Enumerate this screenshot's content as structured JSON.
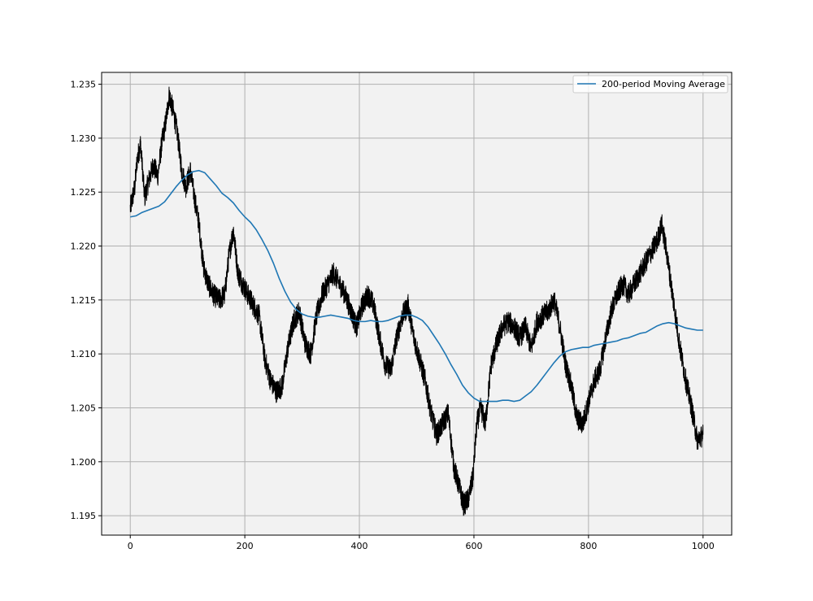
{
  "chart_data": {
    "type": "line",
    "title": "",
    "xlabel": "",
    "ylabel": "",
    "xlim": [
      -50,
      1050
    ],
    "ylim": [
      1.1932,
      1.2361
    ],
    "xticks": [
      0,
      200,
      400,
      600,
      800,
      1000
    ],
    "yticks": [
      1.195,
      1.2,
      1.205,
      1.21,
      1.215,
      1.22,
      1.225,
      1.23,
      1.235
    ],
    "xtick_labels": [
      "0",
      "200",
      "400",
      "600",
      "800",
      "1000"
    ],
    "ytick_labels": [
      "1.195",
      "1.200",
      "1.205",
      "1.210",
      "1.215",
      "1.220",
      "1.225",
      "1.230",
      "1.235"
    ],
    "grid": true,
    "background_color": "#f2f2f2",
    "legend": {
      "position": "top-right",
      "entries": [
        "200-period Moving Average"
      ]
    },
    "series": [
      {
        "role": "price",
        "color": "#000000",
        "volatility": 0.0013,
        "x": [
          0,
          8,
          12,
          18,
          25,
          32,
          40,
          48,
          55,
          62,
          68,
          75,
          82,
          90,
          97,
          105,
          112,
          120,
          128,
          136,
          145,
          155,
          165,
          172,
          180,
          188,
          196,
          205,
          215,
          225,
          235,
          245,
          255,
          265,
          275,
          285,
          295,
          305,
          315,
          325,
          335,
          345,
          355,
          365,
          375,
          385,
          395,
          405,
          415,
          425,
          435,
          445,
          455,
          465,
          475,
          485,
          495,
          505,
          515,
          525,
          535,
          545,
          555,
          565,
          575,
          582,
          590,
          598,
          605,
          612,
          620,
          630,
          640,
          650,
          660,
          670,
          680,
          690,
          700,
          710,
          720,
          730,
          740,
          750,
          760,
          770,
          780,
          790,
          800,
          810,
          820,
          830,
          840,
          850,
          860,
          870,
          880,
          890,
          900,
          910,
          920,
          928,
          936,
          944,
          952,
          960,
          970,
          980,
          990,
          1000
        ],
        "y": [
          1.2235,
          1.2255,
          1.228,
          1.2295,
          1.2245,
          1.226,
          1.2275,
          1.2265,
          1.2295,
          1.2315,
          1.234,
          1.2325,
          1.2305,
          1.227,
          1.2255,
          1.227,
          1.2245,
          1.222,
          1.218,
          1.2165,
          1.2155,
          1.215,
          1.2155,
          1.219,
          1.2215,
          1.2175,
          1.2165,
          1.2155,
          1.2145,
          1.2135,
          1.2095,
          1.2075,
          1.2065,
          1.207,
          1.2105,
          1.213,
          1.214,
          1.211,
          1.21,
          1.2135,
          1.2155,
          1.2165,
          1.2175,
          1.2165,
          1.2155,
          1.214,
          1.2125,
          1.2145,
          1.2155,
          1.2145,
          1.2115,
          1.209,
          1.2085,
          1.2115,
          1.2135,
          1.2145,
          1.2115,
          1.2095,
          1.2075,
          1.2045,
          1.2025,
          1.2035,
          1.2045,
          1.1995,
          1.1975,
          1.196,
          1.1965,
          1.1985,
          1.2035,
          1.205,
          1.2035,
          1.209,
          1.211,
          1.2125,
          1.213,
          1.2125,
          1.2115,
          1.2125,
          1.2105,
          1.213,
          1.2135,
          1.214,
          1.215,
          1.2125,
          1.209,
          1.207,
          1.204,
          1.2035,
          1.2055,
          1.2075,
          1.2085,
          1.2115,
          1.214,
          1.2155,
          1.2165,
          1.2155,
          1.2165,
          1.2175,
          1.2185,
          1.2195,
          1.2205,
          1.222,
          1.2195,
          1.2165,
          1.2135,
          1.2105,
          1.2075,
          1.205,
          1.202,
          1.2025
        ]
      },
      {
        "name": "200-period Moving Average",
        "role": "moving_average",
        "color": "#1f77b4",
        "x": [
          0,
          10,
          20,
          30,
          40,
          50,
          60,
          70,
          80,
          90,
          100,
          110,
          120,
          130,
          140,
          150,
          160,
          170,
          180,
          190,
          200,
          210,
          220,
          230,
          240,
          250,
          260,
          270,
          280,
          290,
          300,
          310,
          320,
          330,
          340,
          350,
          360,
          370,
          380,
          390,
          400,
          410,
          420,
          430,
          440,
          450,
          460,
          470,
          480,
          490,
          500,
          510,
          520,
          530,
          540,
          550,
          560,
          570,
          580,
          590,
          600,
          610,
          620,
          630,
          640,
          650,
          660,
          670,
          680,
          690,
          700,
          710,
          720,
          730,
          740,
          750,
          760,
          770,
          780,
          790,
          800,
          810,
          820,
          830,
          840,
          850,
          860,
          870,
          880,
          890,
          900,
          910,
          920,
          930,
          940,
          950,
          960,
          970,
          980,
          990,
          1000
        ],
        "y": [
          1.2227,
          1.2228,
          1.2231,
          1.2233,
          1.2235,
          1.2237,
          1.2241,
          1.2248,
          1.2255,
          1.2261,
          1.2266,
          1.2269,
          1.227,
          1.2268,
          1.2262,
          1.2256,
          1.2249,
          1.2245,
          1.224,
          1.2233,
          1.2227,
          1.2222,
          1.2215,
          1.2206,
          1.2196,
          1.2184,
          1.217,
          1.2158,
          1.2148,
          1.2141,
          1.2137,
          1.2135,
          1.2134,
          1.2134,
          1.2135,
          1.2136,
          1.2135,
          1.2134,
          1.2133,
          1.2131,
          1.213,
          1.213,
          1.2131,
          1.213,
          1.213,
          1.2131,
          1.2133,
          1.2135,
          1.2136,
          1.2136,
          1.2134,
          1.2131,
          1.2125,
          1.2117,
          1.2109,
          1.21,
          1.209,
          1.2081,
          1.2071,
          1.2064,
          1.2059,
          1.2056,
          1.2056,
          1.2056,
          1.2056,
          1.2057,
          1.2057,
          1.2056,
          1.2057,
          1.2061,
          1.2065,
          1.2071,
          1.2078,
          1.2085,
          1.2092,
          1.2098,
          1.2102,
          1.2104,
          1.2105,
          1.2106,
          1.2106,
          1.2108,
          1.2109,
          1.211,
          1.2111,
          1.2112,
          1.2114,
          1.2115,
          1.2117,
          1.2119,
          1.212,
          1.2123,
          1.2126,
          1.2128,
          1.2129,
          1.2128,
          1.2126,
          1.2124,
          1.2123,
          1.2122,
          1.2122
        ]
      }
    ]
  }
}
